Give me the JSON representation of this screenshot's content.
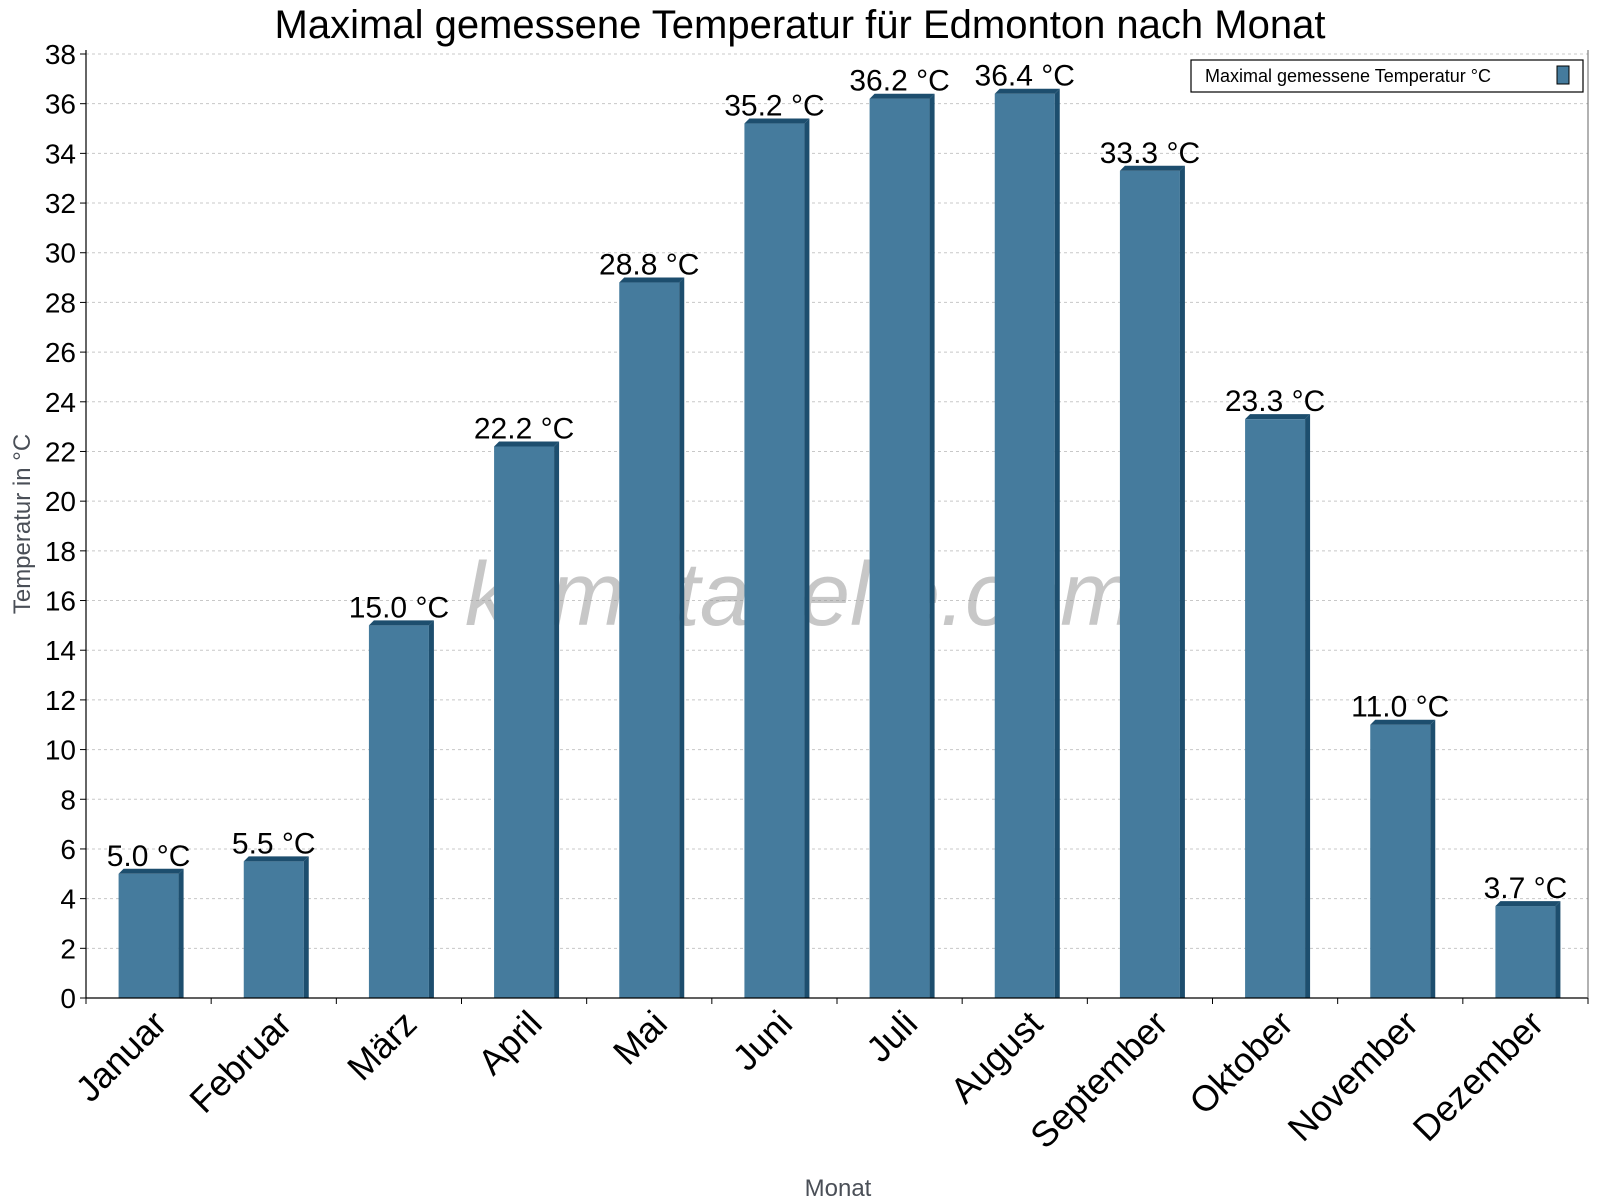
{
  "chart_data": {
    "type": "bar",
    "title": "Maximal gemessene Temperatur für Edmonton nach Monat",
    "xlabel": "Monat",
    "ylabel": "Temperatur in °C",
    "categories": [
      "Januar",
      "Februar",
      "März",
      "April",
      "Mai",
      "Juni",
      "Juli",
      "August",
      "September",
      "Oktober",
      "November",
      "Dezember"
    ],
    "series": [
      {
        "name": "Maximal gemessene Temperatur °C",
        "values": [
          5.0,
          5.5,
          15.0,
          22.2,
          28.8,
          35.2,
          36.2,
          36.4,
          33.3,
          23.3,
          11.0,
          3.7
        ]
      }
    ],
    "value_labels": [
      "5.0 °C",
      "5.5 °C",
      "15.0 °C",
      "22.2 °C",
      "28.8 °C",
      "35.2 °C",
      "36.2 °C",
      "36.4 °C",
      "33.3 °C",
      "23.3 °C",
      "11.0 °C",
      "3.7 °C"
    ],
    "ylim": [
      0,
      38
    ],
    "yticks": [
      0,
      2,
      4,
      6,
      8,
      10,
      12,
      14,
      16,
      18,
      20,
      22,
      24,
      26,
      28,
      30,
      32,
      34,
      36,
      38
    ],
    "grid": true,
    "legend_position": "top-right",
    "watermark": "klimatabelle.com",
    "colors": {
      "bar_front": "#457b9d",
      "bar_dark": "#1d4e6e",
      "grid": "#c8c8c8",
      "axis": "#000000"
    }
  }
}
